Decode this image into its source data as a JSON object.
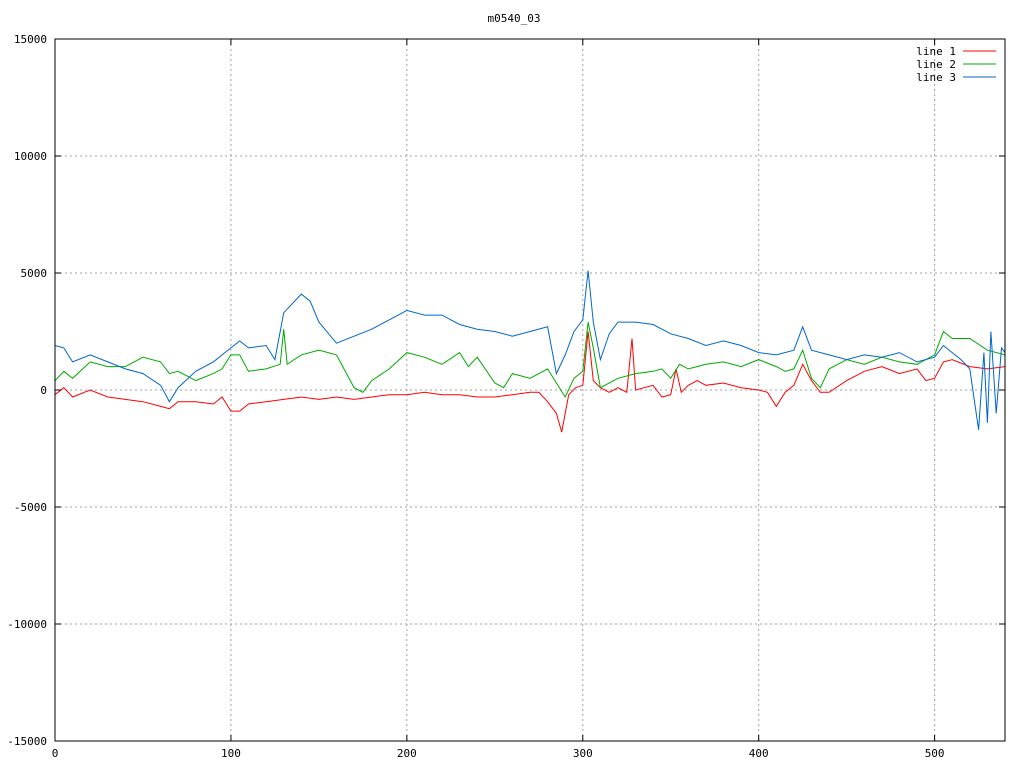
{
  "chart_data": {
    "type": "line",
    "title": "m0540_03",
    "xlabel": "",
    "ylabel": "",
    "xlim": [
      0,
      540
    ],
    "ylim": [
      -15000,
      15000
    ],
    "xticks": [
      0,
      100,
      200,
      300,
      400,
      500
    ],
    "yticks": [
      -15000,
      -10000,
      -5000,
      0,
      5000,
      10000,
      15000
    ],
    "grid": true,
    "legend_position": "top-right",
    "series": [
      {
        "name": "line 1",
        "color": "#ff0000",
        "points": [
          [
            0,
            -200
          ],
          [
            5,
            100
          ],
          [
            10,
            -300
          ],
          [
            20,
            0
          ],
          [
            30,
            -300
          ],
          [
            40,
            -400
          ],
          [
            50,
            -500
          ],
          [
            60,
            -700
          ],
          [
            65,
            -800
          ],
          [
            70,
            -500
          ],
          [
            80,
            -500
          ],
          [
            90,
            -600
          ],
          [
            95,
            -300
          ],
          [
            100,
            -900
          ],
          [
            105,
            -900
          ],
          [
            110,
            -600
          ],
          [
            120,
            -500
          ],
          [
            130,
            -400
          ],
          [
            140,
            -300
          ],
          [
            150,
            -400
          ],
          [
            160,
            -300
          ],
          [
            170,
            -400
          ],
          [
            180,
            -300
          ],
          [
            190,
            -200
          ],
          [
            200,
            -200
          ],
          [
            210,
            -100
          ],
          [
            220,
            -200
          ],
          [
            230,
            -200
          ],
          [
            240,
            -300
          ],
          [
            250,
            -300
          ],
          [
            260,
            -200
          ],
          [
            270,
            -100
          ],
          [
            275,
            -100
          ],
          [
            280,
            -500
          ],
          [
            285,
            -1000
          ],
          [
            288,
            -1800
          ],
          [
            292,
            -200
          ],
          [
            296,
            100
          ],
          [
            300,
            200
          ],
          [
            303,
            2500
          ],
          [
            306,
            400
          ],
          [
            310,
            100
          ],
          [
            315,
            -100
          ],
          [
            320,
            100
          ],
          [
            325,
            -100
          ],
          [
            328,
            2200
          ],
          [
            330,
            0
          ],
          [
            340,
            200
          ],
          [
            345,
            -300
          ],
          [
            350,
            -200
          ],
          [
            353,
            900
          ],
          [
            356,
            -100
          ],
          [
            360,
            200
          ],
          [
            365,
            400
          ],
          [
            370,
            200
          ],
          [
            380,
            300
          ],
          [
            390,
            100
          ],
          [
            400,
            0
          ],
          [
            405,
            -100
          ],
          [
            410,
            -700
          ],
          [
            415,
            -100
          ],
          [
            420,
            200
          ],
          [
            425,
            1100
          ],
          [
            430,
            400
          ],
          [
            435,
            -100
          ],
          [
            440,
            -100
          ],
          [
            450,
            400
          ],
          [
            460,
            800
          ],
          [
            470,
            1000
          ],
          [
            480,
            700
          ],
          [
            490,
            900
          ],
          [
            495,
            400
          ],
          [
            500,
            500
          ],
          [
            505,
            1200
          ],
          [
            510,
            1300
          ],
          [
            520,
            1000
          ],
          [
            530,
            900
          ],
          [
            540,
            1000
          ]
        ]
      },
      {
        "name": "line 2",
        "color": "#00aa00",
        "points": [
          [
            0,
            400
          ],
          [
            5,
            800
          ],
          [
            10,
            500
          ],
          [
            20,
            1200
          ],
          [
            30,
            1000
          ],
          [
            40,
            1000
          ],
          [
            50,
            1400
          ],
          [
            60,
            1200
          ],
          [
            65,
            700
          ],
          [
            70,
            800
          ],
          [
            80,
            400
          ],
          [
            90,
            700
          ],
          [
            95,
            900
          ],
          [
            100,
            1500
          ],
          [
            105,
            1500
          ],
          [
            110,
            800
          ],
          [
            120,
            900
          ],
          [
            128,
            1100
          ],
          [
            130,
            2600
          ],
          [
            132,
            1100
          ],
          [
            140,
            1500
          ],
          [
            150,
            1700
          ],
          [
            160,
            1500
          ],
          [
            170,
            100
          ],
          [
            175,
            -100
          ],
          [
            180,
            400
          ],
          [
            190,
            900
          ],
          [
            200,
            1600
          ],
          [
            210,
            1400
          ],
          [
            220,
            1100
          ],
          [
            230,
            1600
          ],
          [
            235,
            1000
          ],
          [
            240,
            1400
          ],
          [
            250,
            300
          ],
          [
            255,
            100
          ],
          [
            260,
            700
          ],
          [
            270,
            500
          ],
          [
            280,
            900
          ],
          [
            285,
            300
          ],
          [
            290,
            -300
          ],
          [
            295,
            500
          ],
          [
            300,
            800
          ],
          [
            303,
            2900
          ],
          [
            306,
            1800
          ],
          [
            310,
            100
          ],
          [
            320,
            500
          ],
          [
            330,
            700
          ],
          [
            340,
            800
          ],
          [
            345,
            900
          ],
          [
            350,
            500
          ],
          [
            355,
            1100
          ],
          [
            360,
            900
          ],
          [
            365,
            1000
          ],
          [
            370,
            1100
          ],
          [
            380,
            1200
          ],
          [
            390,
            1000
          ],
          [
            400,
            1300
          ],
          [
            410,
            1000
          ],
          [
            415,
            800
          ],
          [
            420,
            900
          ],
          [
            425,
            1700
          ],
          [
            430,
            500
          ],
          [
            435,
            100
          ],
          [
            440,
            900
          ],
          [
            450,
            1300
          ],
          [
            460,
            1100
          ],
          [
            470,
            1400
          ],
          [
            480,
            1200
          ],
          [
            490,
            1100
          ],
          [
            495,
            1300
          ],
          [
            500,
            1500
          ],
          [
            505,
            2500
          ],
          [
            510,
            2200
          ],
          [
            520,
            2200
          ],
          [
            530,
            1700
          ],
          [
            540,
            1500
          ]
        ]
      },
      {
        "name": "line 3",
        "color": "#0066cc",
        "points": [
          [
            0,
            1900
          ],
          [
            5,
            1800
          ],
          [
            10,
            1200
          ],
          [
            20,
            1500
          ],
          [
            30,
            1200
          ],
          [
            40,
            900
          ],
          [
            50,
            700
          ],
          [
            60,
            200
          ],
          [
            65,
            -500
          ],
          [
            70,
            100
          ],
          [
            80,
            800
          ],
          [
            90,
            1200
          ],
          [
            95,
            1500
          ],
          [
            100,
            1800
          ],
          [
            105,
            2100
          ],
          [
            110,
            1800
          ],
          [
            120,
            1900
          ],
          [
            125,
            1300
          ],
          [
            130,
            3300
          ],
          [
            140,
            4100
          ],
          [
            145,
            3800
          ],
          [
            150,
            2900
          ],
          [
            160,
            2000
          ],
          [
            170,
            2300
          ],
          [
            180,
            2600
          ],
          [
            190,
            3000
          ],
          [
            200,
            3400
          ],
          [
            210,
            3200
          ],
          [
            220,
            3200
          ],
          [
            230,
            2800
          ],
          [
            240,
            2600
          ],
          [
            250,
            2500
          ],
          [
            260,
            2300
          ],
          [
            270,
            2500
          ],
          [
            280,
            2700
          ],
          [
            285,
            700
          ],
          [
            290,
            1500
          ],
          [
            295,
            2500
          ],
          [
            300,
            3000
          ],
          [
            303,
            5100
          ],
          [
            306,
            2900
          ],
          [
            310,
            1300
          ],
          [
            315,
            2400
          ],
          [
            320,
            2900
          ],
          [
            330,
            2900
          ],
          [
            340,
            2800
          ],
          [
            350,
            2400
          ],
          [
            360,
            2200
          ],
          [
            370,
            1900
          ],
          [
            380,
            2100
          ],
          [
            390,
            1900
          ],
          [
            400,
            1600
          ],
          [
            410,
            1500
          ],
          [
            420,
            1700
          ],
          [
            425,
            2700
          ],
          [
            430,
            1700
          ],
          [
            440,
            1500
          ],
          [
            450,
            1300
          ],
          [
            460,
            1500
          ],
          [
            470,
            1400
          ],
          [
            480,
            1600
          ],
          [
            490,
            1200
          ],
          [
            500,
            1400
          ],
          [
            505,
            1900
          ],
          [
            510,
            1600
          ],
          [
            515,
            1300
          ],
          [
            520,
            900
          ],
          [
            525,
            -1700
          ],
          [
            528,
            1600
          ],
          [
            530,
            -1400
          ],
          [
            532,
            2500
          ],
          [
            535,
            -1000
          ],
          [
            538,
            1800
          ],
          [
            540,
            1600
          ]
        ]
      }
    ]
  }
}
